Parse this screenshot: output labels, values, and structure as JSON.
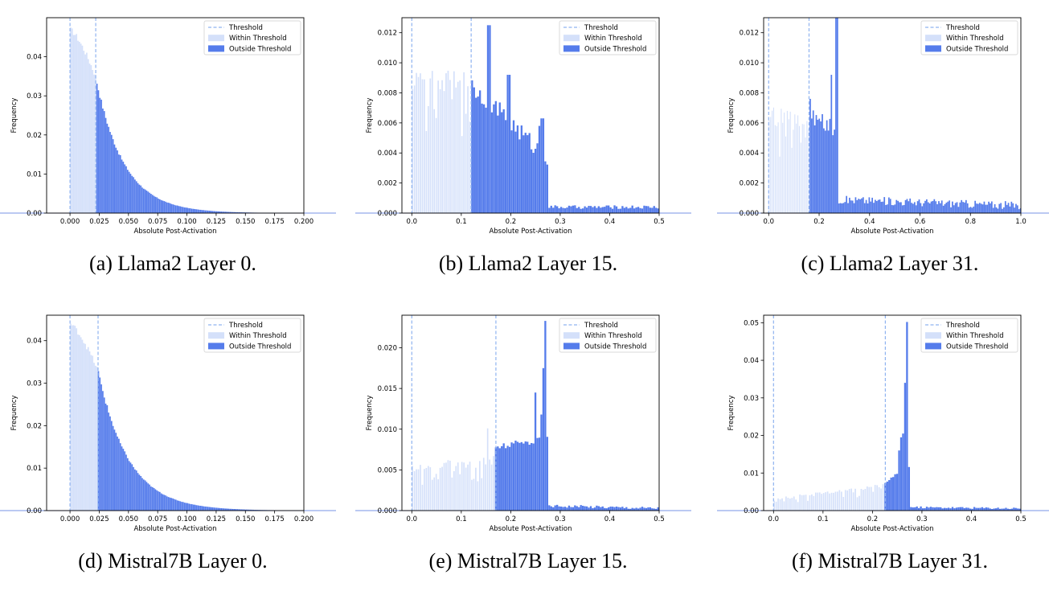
{
  "colors": {
    "within": "#d4e0fa",
    "outside": "#557ceb",
    "threshold": "#8fb3f0",
    "axis": "#000000"
  },
  "legend_labels": {
    "threshold": "Threshold",
    "within": "Within Threshold",
    "outside": "Outside Threshold"
  },
  "captions": [
    "(a) Llama2 Layer 0.",
    "(b) Llama2 Layer 15.",
    "(c) Llama2 Layer 31.",
    "(d) Mistral7B Layer 0.",
    "(e) Mistral7B Layer 15.",
    "(f) Mistral7B Layer 31."
  ],
  "chart_data": [
    {
      "type": "bar",
      "xlabel": "Absolute Post-Activation",
      "ylabel": "Frequency",
      "legend": "top-right",
      "xlim": [
        -0.02,
        0.2
      ],
      "ylim": [
        0,
        0.05
      ],
      "xticks": [
        "0.000",
        "0.025",
        "0.050",
        "0.075",
        "0.100",
        "0.125",
        "0.150",
        "0.175",
        "0.200"
      ],
      "yticks": [
        "0.00",
        "0.01",
        "0.02",
        "0.03",
        "0.04"
      ],
      "thresholds": [
        0.0,
        0.022
      ],
      "bin_width": 0.00125,
      "curve": {
        "kind": "decay",
        "peak": 0.047,
        "knee": 0.022,
        "knee_value": 0.035,
        "decay": 0.024,
        "x_max": 0.23,
        "noise": 0.0015
      }
    },
    {
      "type": "bar",
      "xlabel": "Absolute Post-Activation",
      "ylabel": "Frequency",
      "legend": "top-right",
      "xlim": [
        -0.02,
        0.5
      ],
      "ylim": [
        0,
        0.013
      ],
      "xticks": [
        "0.0",
        "0.1",
        "0.2",
        "0.3",
        "0.4",
        "0.5"
      ],
      "yticks": [
        "0.000",
        "0.002",
        "0.004",
        "0.006",
        "0.008",
        "0.010",
        "0.012"
      ],
      "thresholds": [
        0.0,
        0.12
      ],
      "bin_width": 0.004,
      "curve": {
        "kind": "plateau",
        "low": 0.0088,
        "mid_start": 0.0086,
        "mid_end": 0.0036,
        "mid_to": 0.275,
        "tail": 0.0004,
        "x_max": 0.5,
        "noise": 0.0009
      },
      "spikes": [
        {
          "x": 0.156,
          "y": 0.0125
        },
        {
          "x": 0.196,
          "y": 0.0092
        },
        {
          "x": 0.264,
          "y": 0.0063
        },
        {
          "x": 0.26,
          "y": 0.0058
        }
      ]
    },
    {
      "type": "bar",
      "xlabel": "Absolute Post-Activation",
      "ylabel": "Frequency",
      "legend": "top-right",
      "xlim": [
        -0.02,
        1.0
      ],
      "ylim": [
        0,
        0.013
      ],
      "xticks": [
        "0.0",
        "0.2",
        "0.4",
        "0.6",
        "0.8",
        "1.0"
      ],
      "yticks": [
        "0.000",
        "0.002",
        "0.004",
        "0.006",
        "0.008",
        "0.010",
        "0.012"
      ],
      "thresholds": [
        0.0,
        0.16
      ],
      "bin_width": 0.006,
      "curve": {
        "kind": "plateau",
        "low": 0.0064,
        "mid_start": 0.0065,
        "mid_end": 0.0055,
        "mid_to": 0.275,
        "tail": 0.0009,
        "tail_end": 0.0005,
        "x_max": 1.0,
        "noise": 0.0008
      },
      "spikes": [
        {
          "x": 0.27,
          "y": 0.013
        },
        {
          "x": 0.25,
          "y": 0.0092
        },
        {
          "x": 0.165,
          "y": 0.0076
        }
      ]
    },
    {
      "type": "bar",
      "xlabel": "Absolute Post-Activation",
      "ylabel": "Frequency",
      "legend": "top-right",
      "xlim": [
        -0.02,
        0.2
      ],
      "ylim": [
        0,
        0.046
      ],
      "xticks": [
        "0.000",
        "0.025",
        "0.050",
        "0.075",
        "0.100",
        "0.125",
        "0.150",
        "0.175",
        "0.200"
      ],
      "yticks": [
        "0.00",
        "0.01",
        "0.02",
        "0.03",
        "0.04"
      ],
      "thresholds": [
        0.0,
        0.024
      ],
      "bin_width": 0.00125,
      "curve": {
        "kind": "decay",
        "peak": 0.044,
        "knee": 0.024,
        "knee_value": 0.033,
        "decay": 0.026,
        "x_max": 0.2,
        "noise": 0.0013
      }
    },
    {
      "type": "bar",
      "xlabel": "Absolute Post-Activation",
      "ylabel": "Frequency",
      "legend": "top-right",
      "xlim": [
        -0.02,
        0.5
      ],
      "ylim": [
        0,
        0.024
      ],
      "xticks": [
        "0.0",
        "0.1",
        "0.2",
        "0.3",
        "0.4",
        "0.5"
      ],
      "yticks": [
        "0.000",
        "0.005",
        "0.010",
        "0.015",
        "0.020"
      ],
      "thresholds": [
        0.0,
        0.17
      ],
      "bin_width": 0.004,
      "curve": {
        "kind": "plateau",
        "low": 0.0052,
        "low_end": 0.0064,
        "mid_start": 0.0078,
        "mid_end": 0.0088,
        "mid_to": 0.275,
        "tail": 0.0006,
        "tail_end": 0.0003,
        "x_max": 0.5,
        "noise": 0.0006
      },
      "spikes": [
        {
          "x": 0.27,
          "y": 0.0233
        },
        {
          "x": 0.266,
          "y": 0.0175
        },
        {
          "x": 0.262,
          "y": 0.0118
        },
        {
          "x": 0.25,
          "y": 0.0145
        },
        {
          "x": 0.155,
          "y": 0.0101
        }
      ]
    },
    {
      "type": "bar",
      "xlabel": "Absolute Post-Activation",
      "ylabel": "Frequency",
      "legend": "top-right",
      "xlim": [
        -0.02,
        0.5
      ],
      "ylim": [
        0,
        0.052
      ],
      "xticks": [
        "0.0",
        "0.1",
        "0.2",
        "0.3",
        "0.4",
        "0.5"
      ],
      "yticks": [
        "0.00",
        "0.01",
        "0.02",
        "0.03",
        "0.04",
        "0.05"
      ],
      "thresholds": [
        0.0,
        0.226
      ],
      "bin_width": 0.004,
      "curve": {
        "kind": "plateau",
        "low": 0.003,
        "low_end": 0.0068,
        "mid_start": 0.0075,
        "mid_end": 0.012,
        "mid_to": 0.275,
        "tail": 0.0009,
        "tail_end": 0.0006,
        "x_max": 0.5,
        "noise": 0.0005
      },
      "spikes": [
        {
          "x": 0.27,
          "y": 0.0502
        },
        {
          "x": 0.266,
          "y": 0.034
        },
        {
          "x": 0.262,
          "y": 0.0205
        },
        {
          "x": 0.258,
          "y": 0.0195
        },
        {
          "x": 0.254,
          "y": 0.016
        }
      ]
    }
  ]
}
